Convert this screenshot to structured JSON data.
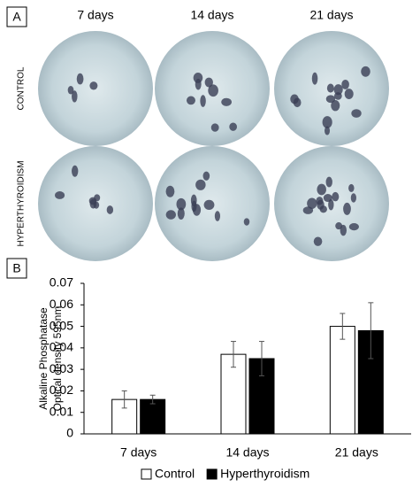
{
  "panel_a": {
    "label": "A",
    "columns": [
      "7 days",
      "14 days",
      "21 days"
    ],
    "rows": [
      "CONTROL",
      "HYPERTHYROIDISM"
    ]
  },
  "panel_b": {
    "label": "B"
  },
  "chart_data": {
    "type": "bar",
    "ylabel": [
      "Alkaline Phosphatase",
      "Optical density 595nm"
    ],
    "categories": [
      "7 days",
      "14 days",
      "21 days"
    ],
    "series": [
      {
        "name": "Control",
        "color": "#ffffff",
        "values": [
          0.016,
          0.037,
          0.05
        ],
        "errors": [
          0.004,
          0.006,
          0.006
        ]
      },
      {
        "name": "Hyperthyroidism",
        "color": "#000000",
        "values": [
          0.016,
          0.035,
          0.048
        ],
        "errors": [
          0.002,
          0.008,
          0.013
        ]
      }
    ],
    "ylim": [
      0,
      0.07
    ],
    "yticks": [
      0,
      0.01,
      0.02,
      0.03,
      0.04,
      0.05,
      0.06,
      0.07
    ],
    "legend": "bottom"
  }
}
